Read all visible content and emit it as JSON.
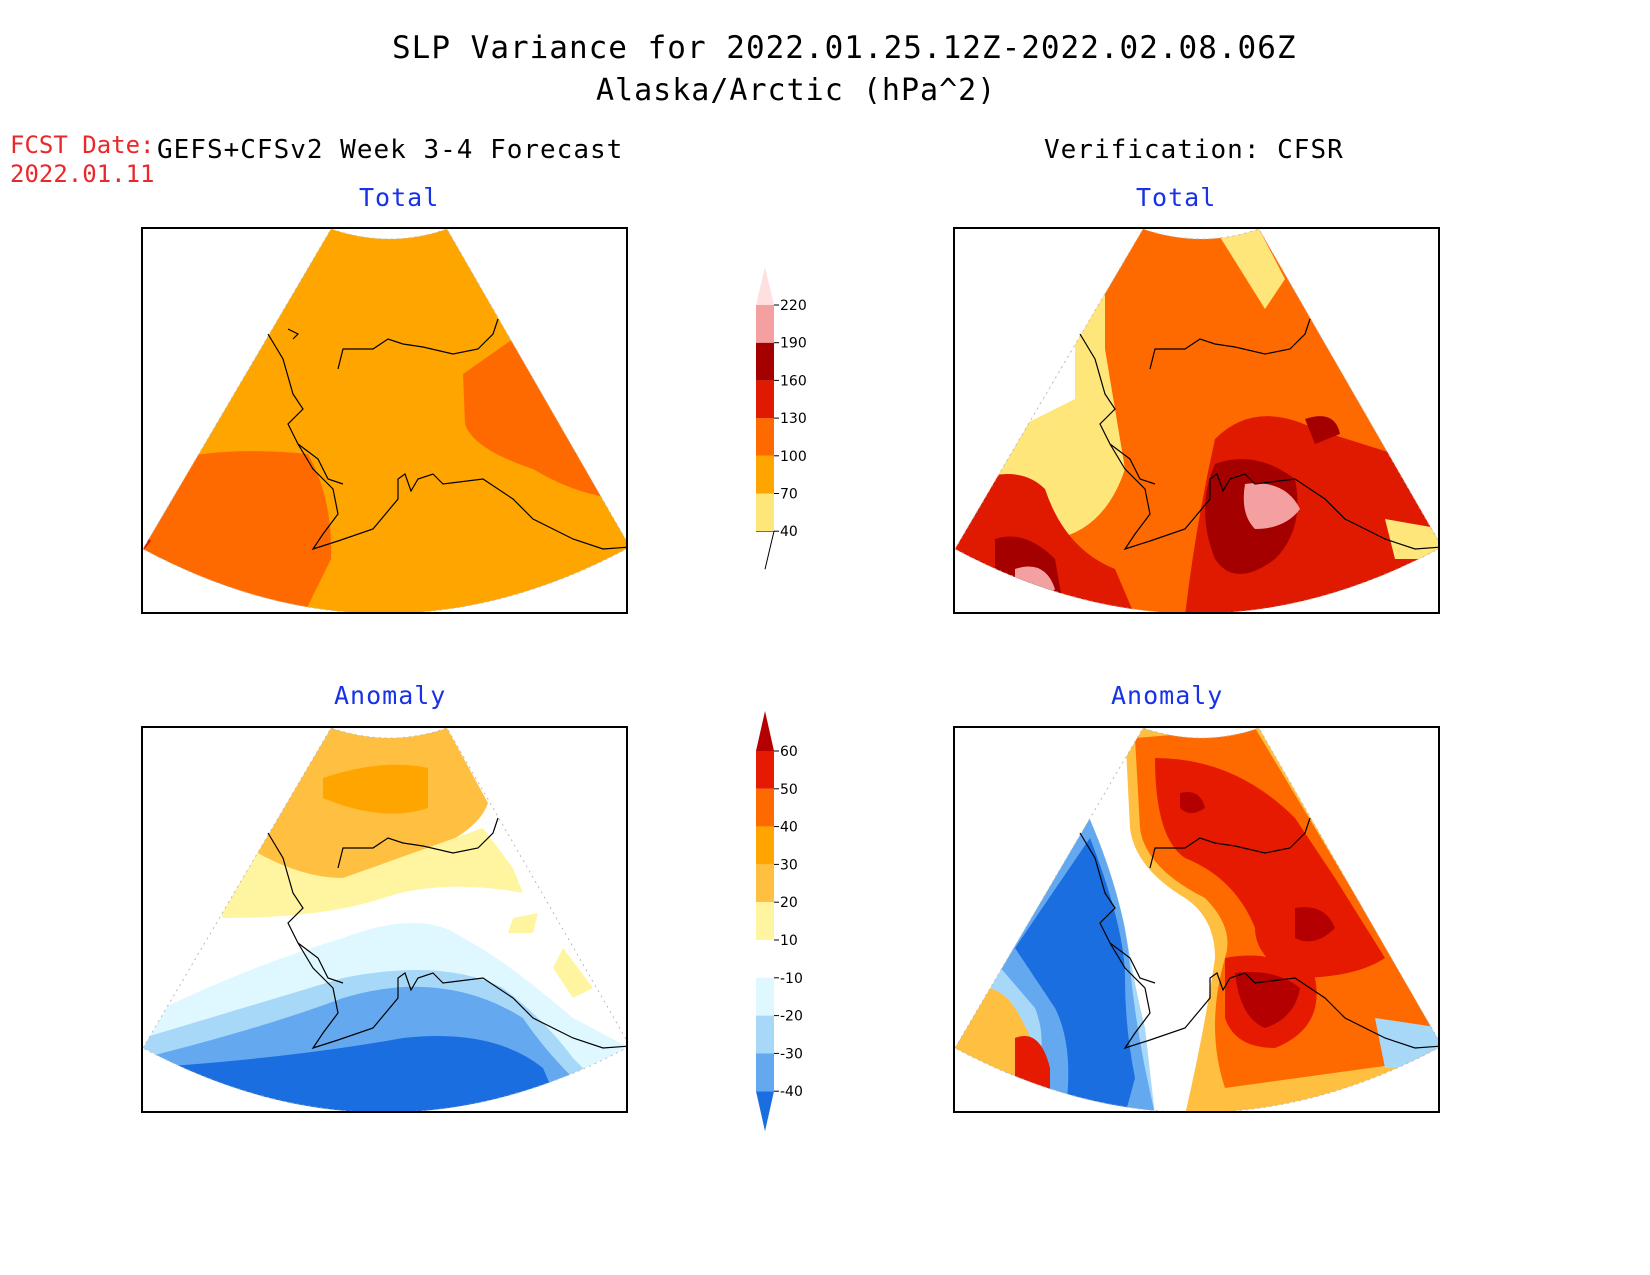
{
  "title": "SLP Variance for 2022.01.25.12Z-2022.02.08.06Z",
  "subtitle": "Alaska/Arctic (hPa^2)",
  "fcst_label": "FCST Date:",
  "fcst_date": "2022.01.11",
  "left_header": "GEFS+CFSv2 Week 3-4 Forecast",
  "right_header": "Verification: CFSR",
  "panels": {
    "fcst_total": "Total",
    "verif_total": "Total",
    "fcst_anomaly": "Anomaly",
    "verif_anomaly": "Anomaly"
  },
  "total_colorbar": {
    "levels": [
      "40",
      "70",
      "100",
      "130",
      "160",
      "190",
      "220"
    ],
    "colors": [
      "#ffe67a",
      "#ffa500",
      "#ff6a00",
      "#e01a00",
      "#a50000",
      "#f4a0a0",
      "#ffe0e0"
    ]
  },
  "anomaly_colorbar": {
    "levels": [
      "60",
      "50",
      "40",
      "30",
      "20",
      "10",
      "-10",
      "-20",
      "-30",
      "-40"
    ],
    "colors": [
      "#b40000",
      "#e61a00",
      "#ff6a00",
      "#ffa500",
      "#ffbf40",
      "#fff5a0",
      "#ffffff",
      "#dff8ff",
      "#a8d8f8",
      "#64a8f0",
      "#1a6ee0"
    ]
  }
}
